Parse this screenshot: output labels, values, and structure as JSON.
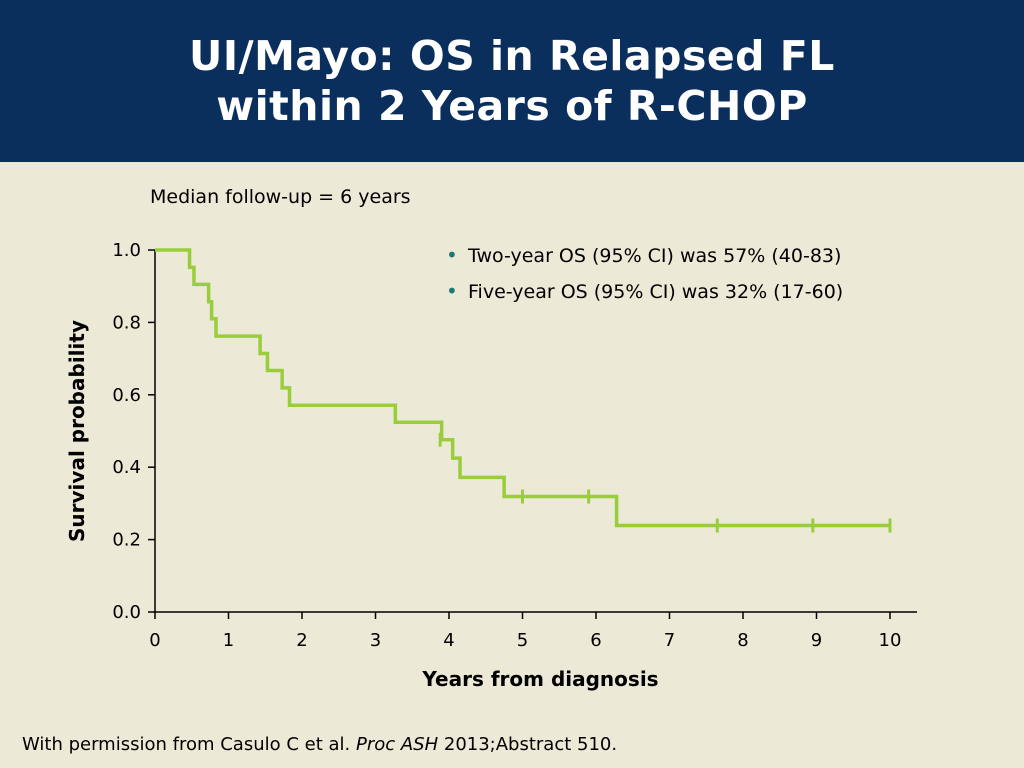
{
  "title": {
    "line1": "UI/Mayo: OS in Relapsed FL",
    "line2": "within 2 Years of R-CHOP"
  },
  "followup": "Median follow-up = 6 years",
  "bullets": [
    "Two-year OS (95% CI) was 57% (40-83)",
    "Five-year OS (95% CI) was 32% (17-60)"
  ],
  "source": {
    "prefix": "With permission from Casulo C et al. ",
    "journal": "Proc ASH",
    "suffix": " 2013;Abstract 510."
  },
  "colors": {
    "title_bg": "#0a2f5c",
    "background": "#ede9d7",
    "curve": "#9acd3c",
    "bullet": "#1d7a72"
  },
  "chart_data": {
    "type": "line",
    "subtype": "kaplan-meier-step",
    "xlabel": "Years from diagnosis",
    "ylabel": "Survival probability",
    "xlim": [
      0,
      10
    ],
    "ylim": [
      0,
      1.0
    ],
    "xticks": [
      "0",
      "1",
      "2",
      "3",
      "4",
      "5",
      "6",
      "7",
      "8",
      "9",
      "10"
    ],
    "yticks": [
      "0.0",
      "0.2",
      "0.4",
      "0.6",
      "0.8",
      "1.0"
    ],
    "steps": [
      [
        0,
        1.0
      ],
      [
        0.47,
        0.952
      ],
      [
        0.53,
        0.905
      ],
      [
        0.73,
        0.857
      ],
      [
        0.77,
        0.81
      ],
      [
        0.83,
        0.762
      ],
      [
        1.43,
        0.714
      ],
      [
        1.53,
        0.667
      ],
      [
        1.73,
        0.619
      ],
      [
        1.83,
        0.571
      ],
      [
        3.27,
        0.524
      ],
      [
        3.9,
        0.476
      ],
      [
        4.05,
        0.425
      ],
      [
        4.15,
        0.372
      ],
      [
        4.75,
        0.319
      ],
      [
        6.28,
        0.239
      ],
      [
        10.0,
        0.239
      ]
    ],
    "censored": [
      [
        3.88,
        0.476
      ],
      [
        5.0,
        0.319
      ],
      [
        5.9,
        0.319
      ],
      [
        7.65,
        0.239
      ],
      [
        8.95,
        0.239
      ],
      [
        10.0,
        0.239
      ]
    ],
    "grid": false
  }
}
